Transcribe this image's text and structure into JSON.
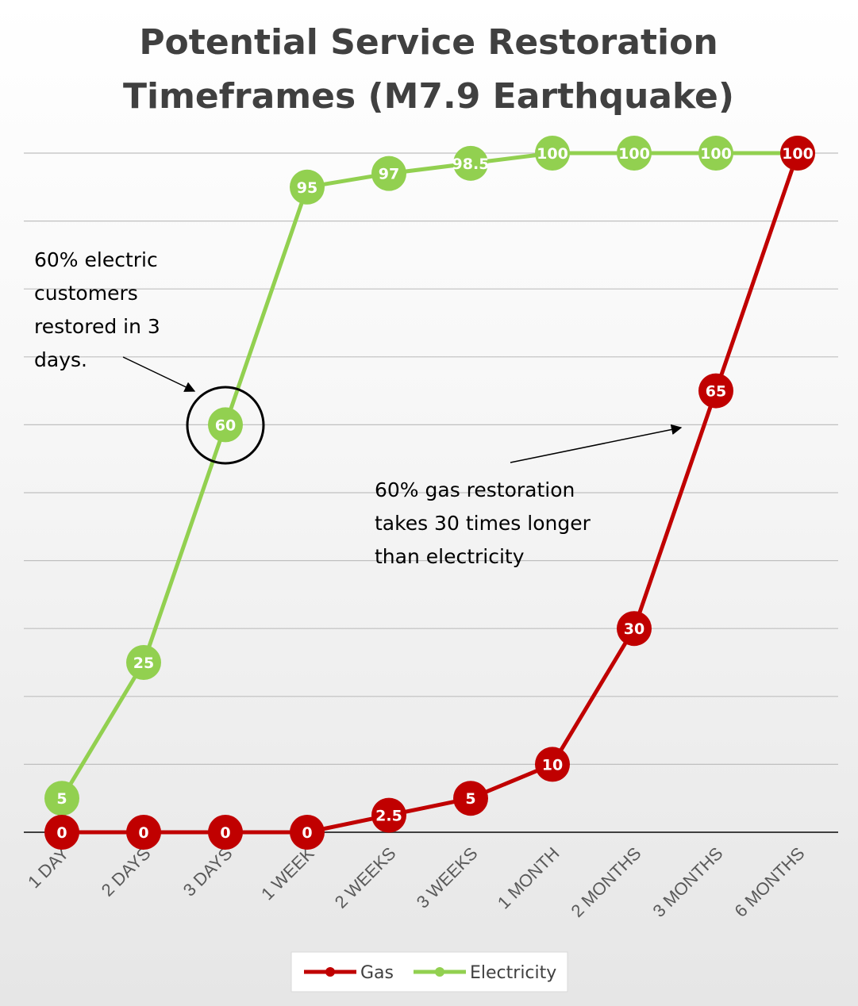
{
  "chart_data": {
    "type": "line",
    "title": [
      "Potential Service Restoration",
      "Timeframes (M7.9 Earthquake)"
    ],
    "categories": [
      "1 DAY",
      "2 DAYS",
      "3 DAYS",
      "1 WEEK",
      "2 WEEKS",
      "3 WEEKS",
      "1 MONTH",
      "2 MONTHS",
      "3 MONTHS",
      "6 MONTHS"
    ],
    "series": [
      {
        "name": "Gas",
        "color": "#c00000",
        "values": [
          0,
          0,
          0,
          0,
          2.5,
          5,
          10,
          30,
          65,
          100
        ]
      },
      {
        "name": "Electricity",
        "color": "#92d050",
        "values": [
          5,
          25,
          60,
          95,
          97,
          98.5,
          100,
          100,
          100,
          100
        ]
      }
    ],
    "ylim": [
      0,
      100
    ],
    "grid": true,
    "legend": "bottom",
    "annotations": [
      {
        "text": [
          "60% electric",
          "customers",
          "restored in 3",
          "days."
        ],
        "target_series": "Electricity",
        "target_category": "3 DAYS"
      },
      {
        "text": [
          "60% gas restoration",
          "takes 30 times longer",
          "than electricity"
        ],
        "target_series": "Gas",
        "target_category": "3 MONTHS"
      }
    ]
  }
}
